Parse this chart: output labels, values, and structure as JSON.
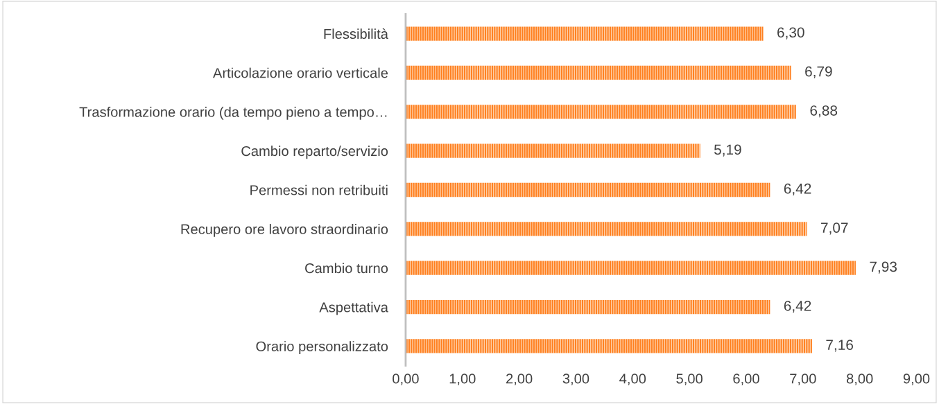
{
  "chart_data": {
    "type": "bar",
    "orientation": "horizontal",
    "categories": [
      "Flessibilità",
      "Articolazione orario verticale",
      "Trasformazione orario (da tempo pieno a tempo…",
      "Cambio reparto/servizio",
      "Permessi non retribuiti",
      "Recupero ore lavoro straordinario",
      "Cambio turno",
      "Aspettativa",
      "Orario personalizzato"
    ],
    "values": [
      6.3,
      6.79,
      6.88,
      5.19,
      6.42,
      7.07,
      7.93,
      6.42,
      7.16
    ],
    "value_labels": [
      "6,30",
      "6,79",
      "6,88",
      "5,19",
      "6,42",
      "7,07",
      "7,93",
      "6,42",
      "7,16"
    ],
    "color": "#ff7f1e",
    "xlim": [
      0,
      9
    ],
    "xticks": [
      {
        "value": 0,
        "label": "0,00"
      },
      {
        "value": 1,
        "label": "1,00"
      },
      {
        "value": 2,
        "label": "2,00"
      },
      {
        "value": 3,
        "label": "3,00"
      },
      {
        "value": 4,
        "label": "4,00"
      },
      {
        "value": 5,
        "label": "5,00"
      },
      {
        "value": 6,
        "label": "6,00"
      },
      {
        "value": 7,
        "label": "7,00"
      },
      {
        "value": 8,
        "label": "8,00"
      },
      {
        "value": 9,
        "label": "9,00"
      }
    ],
    "grid": false,
    "legend": false
  }
}
